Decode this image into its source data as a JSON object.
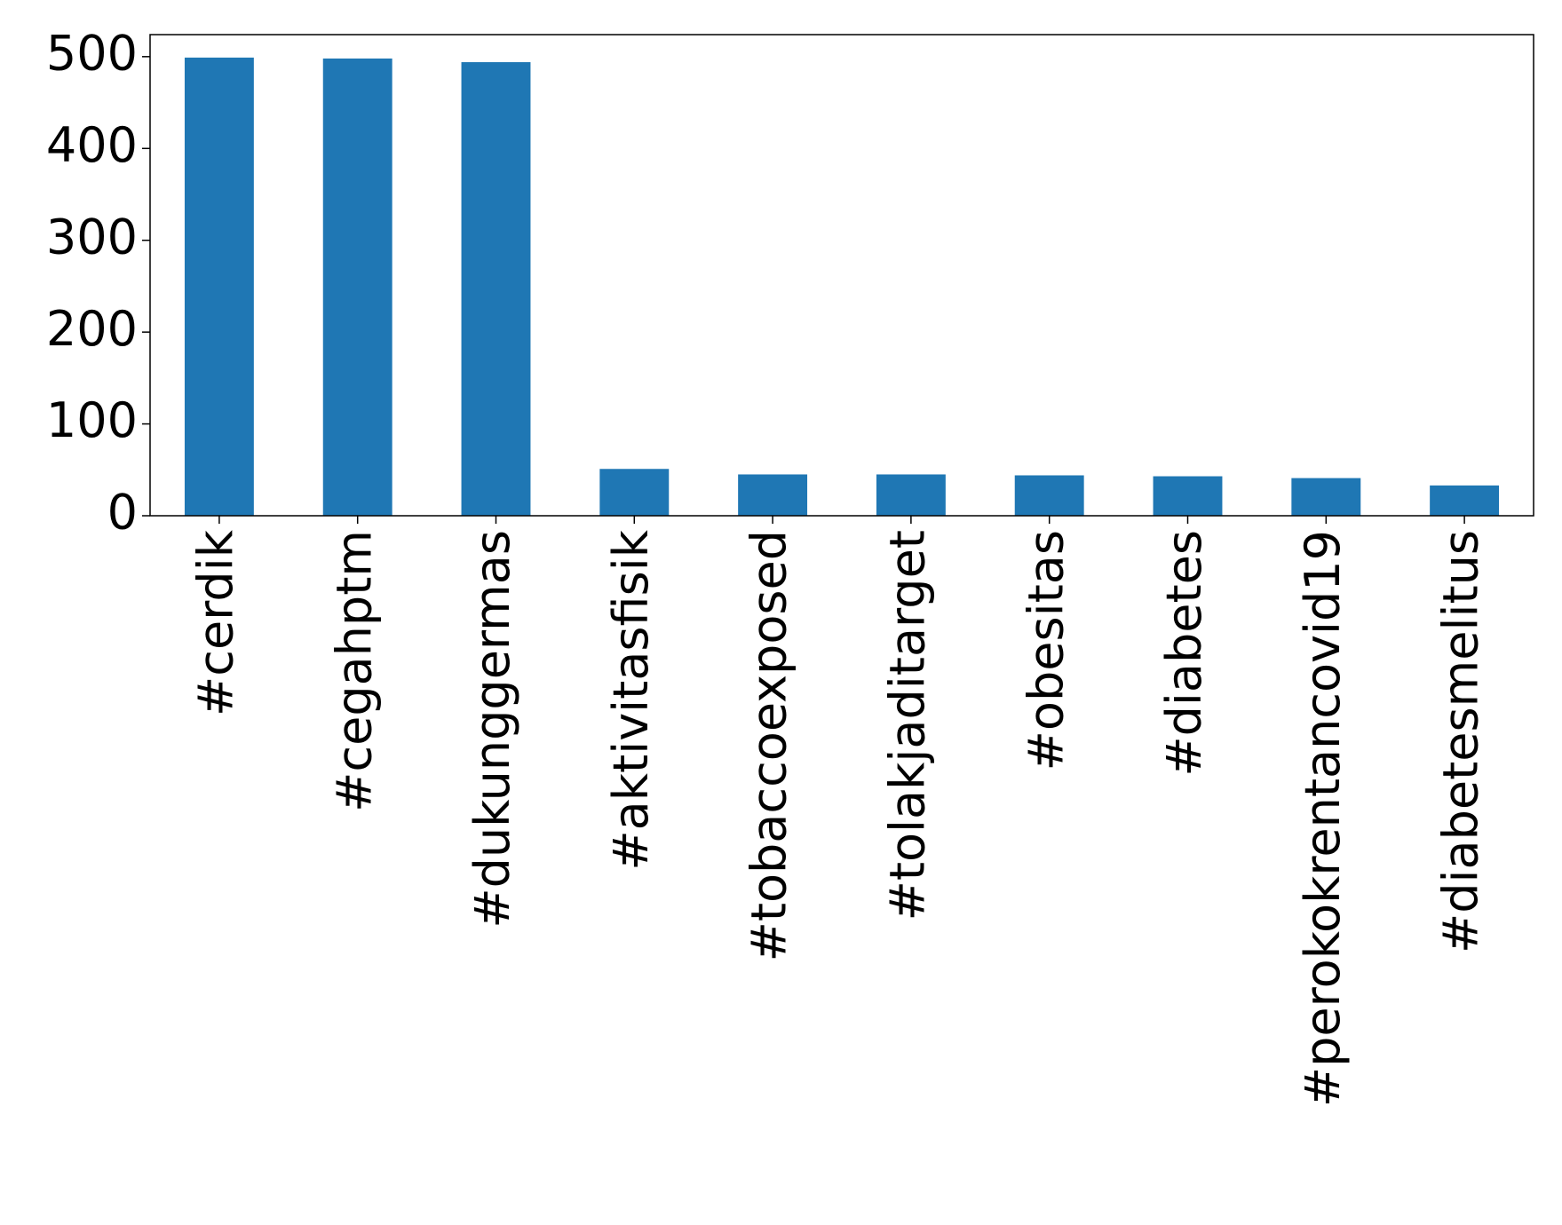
{
  "chart_data": {
    "type": "bar",
    "categories": [
      "#cerdik",
      "#cegahptm",
      "#dukunggermas",
      "#aktivitasfisik",
      "#tobaccoexposed",
      "#tolakjaditarget",
      "#obesitas",
      "#diabetes",
      "#perokokrentancovid19",
      "#diabetesmelitus"
    ],
    "values": [
      499,
      498,
      494,
      51,
      45,
      45,
      44,
      43,
      41,
      33
    ],
    "color": "#1f77b4",
    "ylim": [
      0,
      524
    ],
    "yticks": [
      0,
      100,
      200,
      300,
      400,
      500
    ],
    "grid": false
  }
}
